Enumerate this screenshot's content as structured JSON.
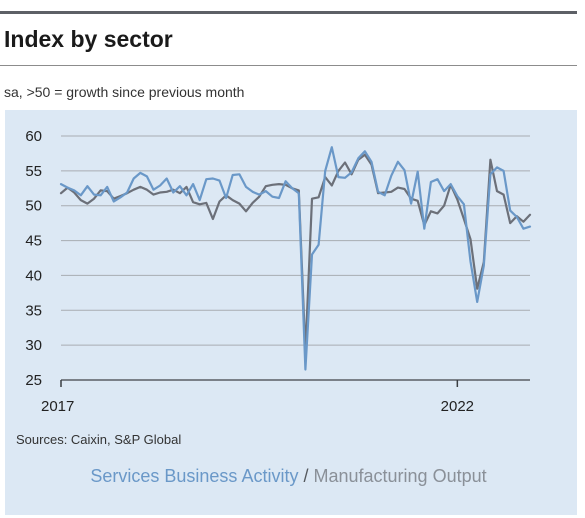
{
  "header": {
    "title": "Index by sector",
    "subtitle": "sa, >50 = growth since previous month"
  },
  "footer": {
    "sources": "Sources: Caixin, S&P Global"
  },
  "legend": {
    "separator": "/"
  },
  "colors": {
    "services": "#6a98c8",
    "manufacturing": "#6c7079",
    "panel": "#dce8f4",
    "grid": "#a8acb2",
    "axis_text": "#222222"
  },
  "chart_data": {
    "type": "line",
    "title": "Index by sector",
    "subtitle": "sa, >50 = growth since previous month",
    "xlabel": "",
    "ylabel": "",
    "ylim": [
      25,
      60
    ],
    "yticks": [
      25,
      30,
      35,
      40,
      45,
      50,
      55,
      60
    ],
    "x_tick_labels": [
      {
        "month_index": 0,
        "label": "2017"
      },
      {
        "month_index": 60,
        "label": "2022"
      }
    ],
    "x_start": "2017-01",
    "x_end": "2023-01",
    "grid": true,
    "legend_position": "bottom",
    "series": [
      {
        "name": "Services Business Activity",
        "color": "#6a98c8",
        "values": [
          53.1,
          52.6,
          52.2,
          51.5,
          52.8,
          51.6,
          51.5,
          52.7,
          50.6,
          51.2,
          51.9,
          53.9,
          54.7,
          54.2,
          52.3,
          52.9,
          53.9,
          51.9,
          52.8,
          51.5,
          53.1,
          50.8,
          53.8,
          53.9,
          53.6,
          51.1,
          54.4,
          54.5,
          52.7,
          52.0,
          51.6,
          52.1,
          51.3,
          51.1,
          53.5,
          52.5,
          51.8,
          26.5,
          43.0,
          44.4,
          55.0,
          58.4,
          54.1,
          54.0,
          54.8,
          56.8,
          57.8,
          56.3,
          52.0,
          51.5,
          54.3,
          56.3,
          55.1,
          50.3,
          54.9,
          46.7,
          53.4,
          53.8,
          52.1,
          53.1,
          51.4,
          50.2,
          42.0,
          36.2,
          41.4,
          54.5,
          55.5,
          55.0,
          49.3,
          48.4,
          46.7,
          47.0
        ]
      },
      {
        "name": "Manufacturing Output",
        "color": "#6c7079",
        "values": [
          51.8,
          52.6,
          51.9,
          50.8,
          50.3,
          51.0,
          52.2,
          52.1,
          51.0,
          51.4,
          51.8,
          52.3,
          52.7,
          52.3,
          51.6,
          51.9,
          52.0,
          52.3,
          51.8,
          52.7,
          50.5,
          50.2,
          50.4,
          48.1,
          50.6,
          51.5,
          50.8,
          50.3,
          49.2,
          50.4,
          51.3,
          52.8,
          53.0,
          53.1,
          53.0,
          52.5,
          52.2,
          29.0,
          51.0,
          51.2,
          54.1,
          52.9,
          55.0,
          56.2,
          54.5,
          56.6,
          57.3,
          55.9,
          51.8,
          51.9,
          52.0,
          52.6,
          52.4,
          51.0,
          50.7,
          47.2,
          49.2,
          48.9,
          50.0,
          53.0,
          50.9,
          48.1,
          45.2,
          38.1,
          41.9,
          56.6,
          52.1,
          51.6,
          47.5,
          48.5,
          47.7,
          48.7
        ]
      }
    ]
  }
}
